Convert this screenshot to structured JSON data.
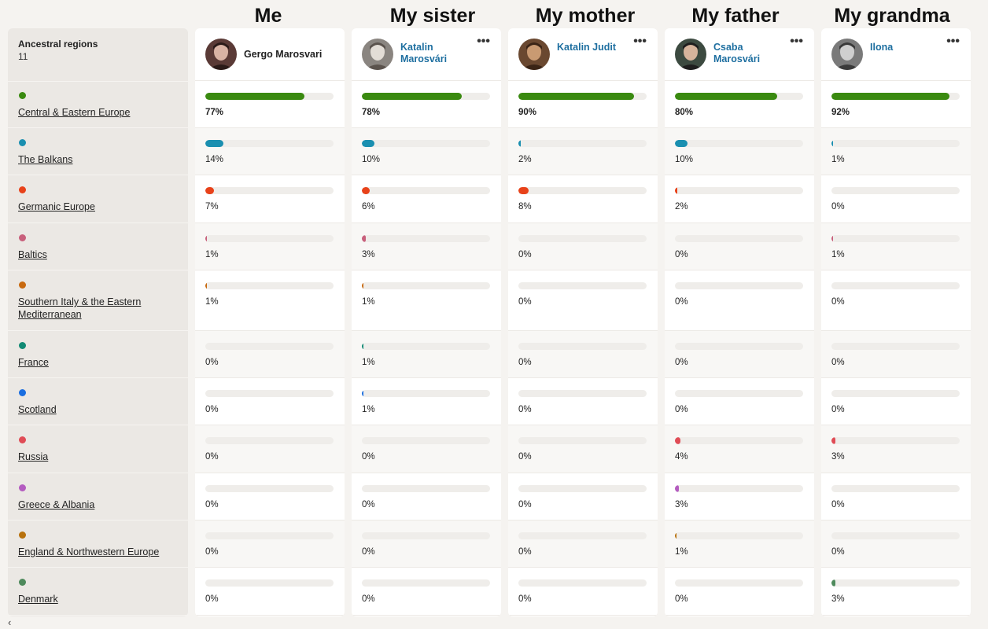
{
  "column_titles": [
    "Me",
    "My sister",
    "My mother",
    "My father",
    "My grandma"
  ],
  "regions_header": {
    "title": "Ancestral regions",
    "count": "11"
  },
  "regions": [
    {
      "name": "Central & Eastern Europe",
      "color": "#3a8a10"
    },
    {
      "name": "The Balkans",
      "color": "#1a8fb0"
    },
    {
      "name": "Germanic Europe",
      "color": "#e8421a"
    },
    {
      "name": "Baltics",
      "color": "#c8607c"
    },
    {
      "name": "Southern Italy & the Eastern Mediterranean",
      "color": "#c86a10"
    },
    {
      "name": "France",
      "color": "#128a74"
    },
    {
      "name": "Scotland",
      "color": "#1a6ee0"
    },
    {
      "name": "Russia",
      "color": "#e04c56"
    },
    {
      "name": "Greece & Albania",
      "color": "#b45cc0"
    },
    {
      "name": "England & Northwestern Europe",
      "color": "#b8720e"
    },
    {
      "name": "Denmark",
      "color": "#4e8a5c"
    }
  ],
  "people": [
    {
      "name": "Gergo Marosvari",
      "self": true,
      "values": [
        "77%",
        "14%",
        "7%",
        "1%",
        "1%",
        "0%",
        "0%",
        "0%",
        "0%",
        "0%",
        "0%"
      ]
    },
    {
      "name": "Katalin Marosvári",
      "self": false,
      "values": [
        "78%",
        "10%",
        "6%",
        "3%",
        "1%",
        "1%",
        "1%",
        "0%",
        "0%",
        "0%",
        "0%"
      ]
    },
    {
      "name": "Katalin Judit",
      "self": false,
      "values": [
        "90%",
        "2%",
        "8%",
        "0%",
        "0%",
        "0%",
        "0%",
        "0%",
        "0%",
        "0%",
        "0%"
      ]
    },
    {
      "name": "Csaba Marosvári",
      "self": false,
      "values": [
        "80%",
        "10%",
        "2%",
        "0%",
        "0%",
        "0%",
        "0%",
        "4%",
        "3%",
        "1%",
        "0%"
      ]
    },
    {
      "name": "Ilona",
      "self": false,
      "values": [
        "92%",
        "1%",
        "0%",
        "1%",
        "0%",
        "0%",
        "0%",
        "3%",
        "0%",
        "0%",
        "3%"
      ]
    }
  ],
  "icons": {
    "more": "more-horizontal-icon",
    "scroll": "chevron-left-icon"
  },
  "more_glyph": "•••",
  "scroll_glyph": "‹"
}
